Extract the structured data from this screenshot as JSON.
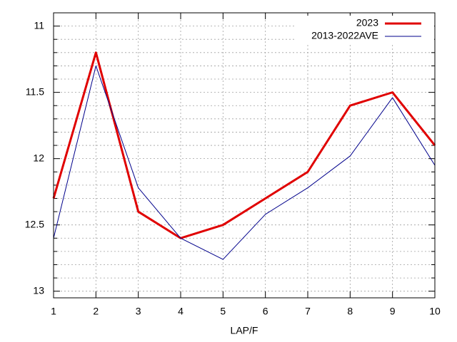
{
  "chart_data": {
    "type": "line",
    "x_label": "LAP/F",
    "x": [
      1,
      2,
      3,
      4,
      5,
      6,
      7,
      8,
      9,
      10
    ],
    "series": [
      {
        "name": "2023",
        "color": "#e00000",
        "width": 3,
        "values": [
          12.3,
          11.2,
          12.4,
          12.6,
          12.5,
          12.3,
          12.1,
          11.6,
          11.5,
          11.9
        ]
      },
      {
        "name": "2013-2022AVE",
        "color": "#00008b",
        "width": 1,
        "values": [
          12.6,
          11.3,
          12.22,
          12.6,
          12.76,
          12.42,
          12.22,
          11.98,
          11.54,
          12.05
        ]
      }
    ],
    "xlim": [
      1,
      10
    ],
    "xticks": [
      1,
      2,
      3,
      4,
      5,
      6,
      7,
      8,
      9,
      10
    ],
    "ylim": [
      10.9,
      13.05
    ],
    "y_reversed": true,
    "yticks": [
      11,
      11.5,
      12,
      12.5,
      13
    ],
    "yminorticks": [
      11.1,
      11.2,
      11.3,
      11.4,
      11.6,
      11.7,
      11.8,
      11.9,
      12.1,
      12.2,
      12.3,
      12.4,
      12.6,
      12.7,
      12.8,
      12.9
    ],
    "grid": true,
    "legend": "top-right"
  }
}
